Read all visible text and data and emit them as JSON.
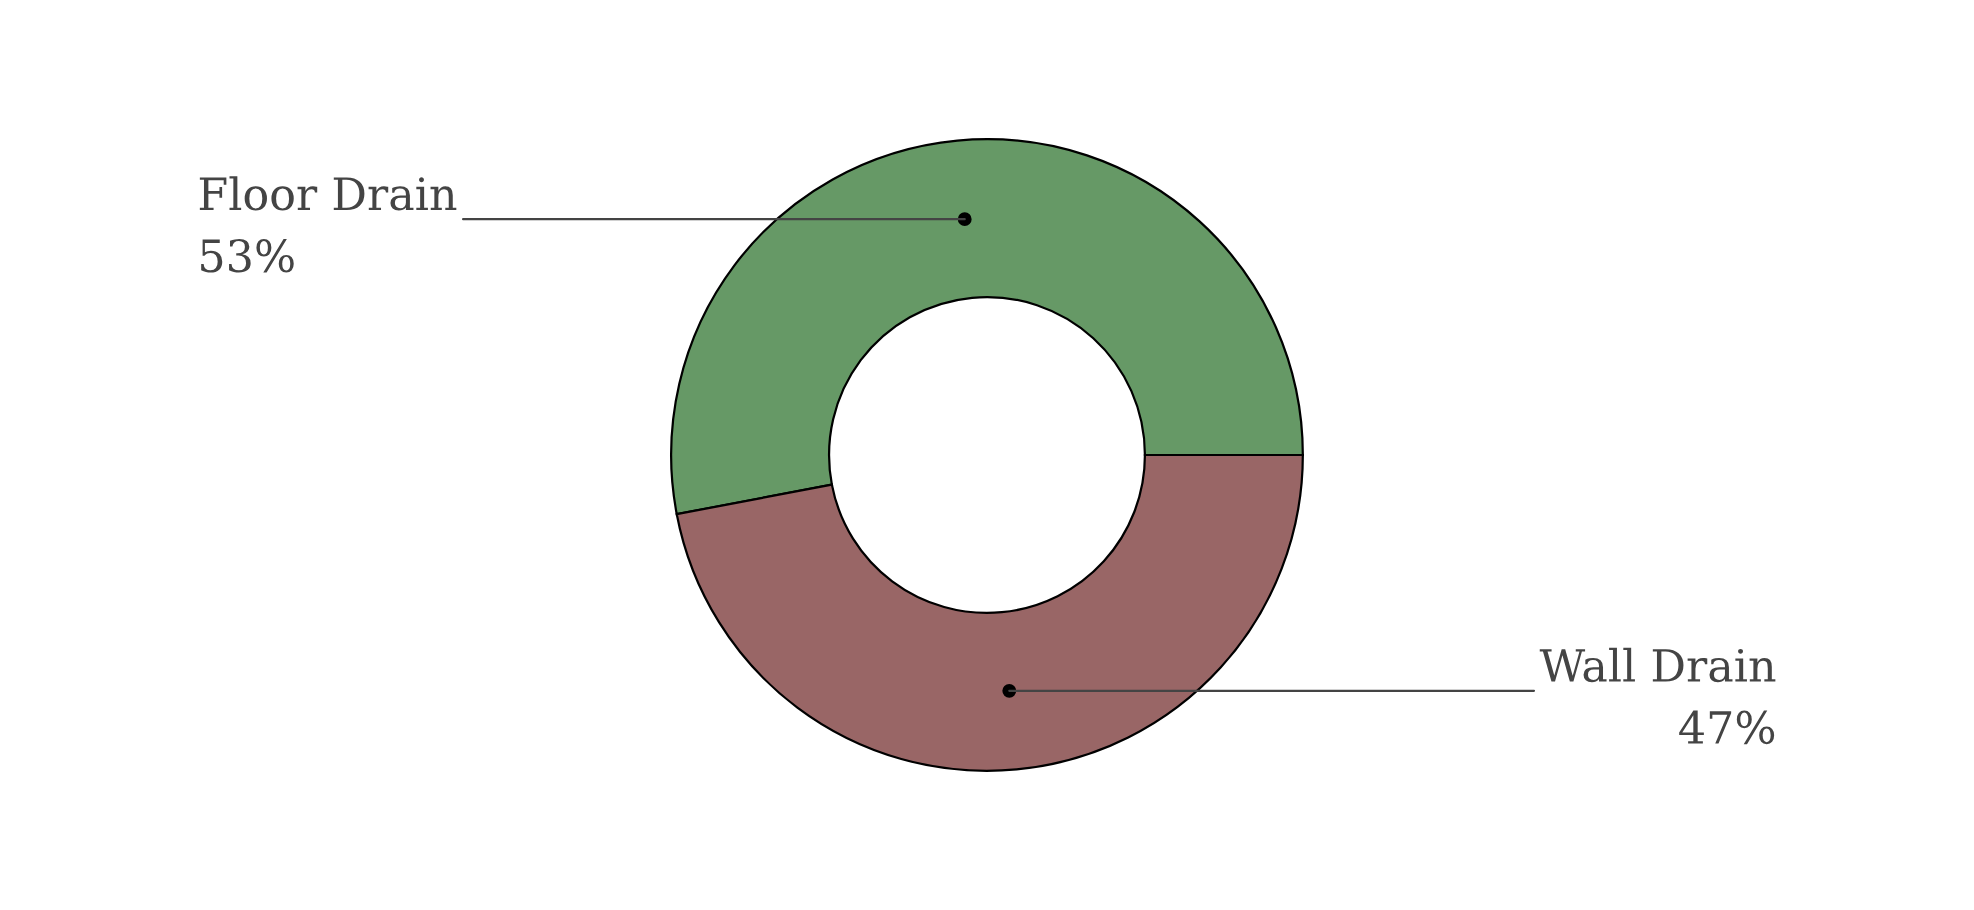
{
  "chart_data": {
    "type": "donut",
    "categories": [
      "Floor Drain",
      "Wall Drain"
    ],
    "values": [
      53,
      47
    ],
    "colors": [
      "#669966",
      "#996666"
    ],
    "value_labels": [
      "53%",
      "47%"
    ]
  }
}
